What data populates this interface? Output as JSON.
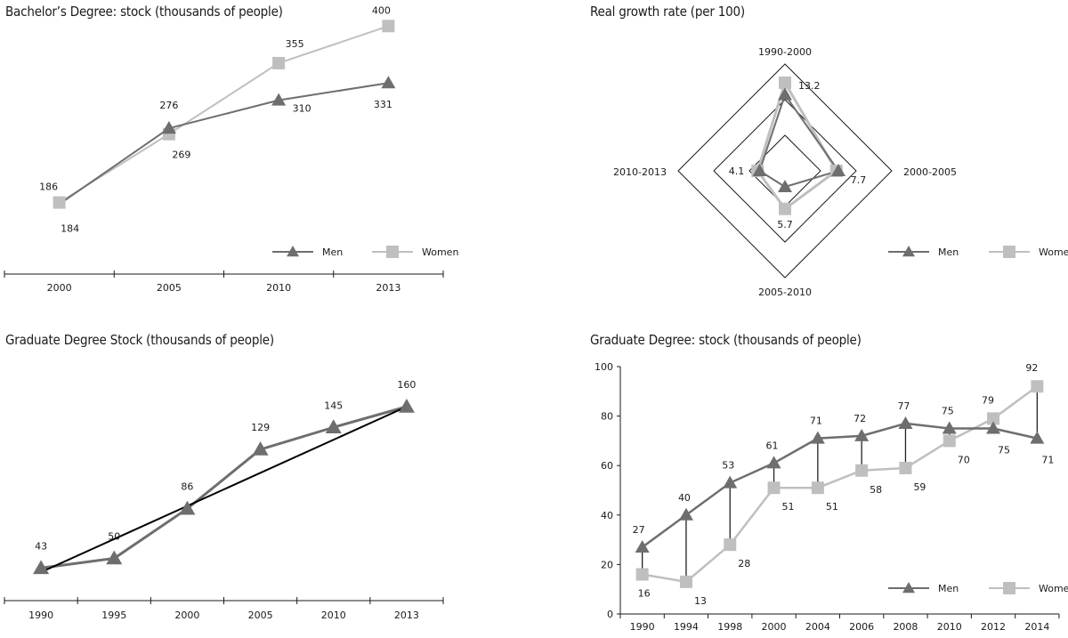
{
  "colors": {
    "men": "#6e6e6e",
    "women": "#bfbfbf",
    "axis": "#1a1a1a",
    "trend": "#000000"
  },
  "legend": {
    "men": "Men",
    "women": "Women"
  },
  "chart_data": [
    {
      "id": "bachelor",
      "type": "line",
      "title": "Bachelor’s Degree: stock (thousands of people)",
      "categories": [
        "2000",
        "2005",
        "2010",
        "2013"
      ],
      "series": [
        {
          "name": "Men",
          "values": [
            184,
            276,
            310,
            331
          ]
        },
        {
          "name": "Women",
          "values": [
            186,
            269,
            355,
            400
          ]
        }
      ],
      "ylim": [
        110,
        410
      ],
      "legend": "bottom-right"
    },
    {
      "id": "radar",
      "type": "radar",
      "title": "Real growth rate (per 100)",
      "axes": [
        "1990-2000",
        "2000-2005",
        "2005-2010",
        "2010-2013"
      ],
      "series": [
        {
          "name": "Men",
          "values": [
            11.4,
            8.0,
            2.4,
            3.8
          ]
        },
        {
          "name": "Women",
          "values": [
            13.2,
            7.7,
            5.7,
            4.1
          ]
        }
      ],
      "max": 16,
      "labels": [
        {
          "text": "13.2",
          "axis": 0,
          "value": 13.2
        },
        {
          "text": "7.7",
          "axis": 1,
          "value": 7.7
        },
        {
          "text": "5.7",
          "axis": 2,
          "value": 5.7
        },
        {
          "text": "4.1",
          "axis": 3,
          "value": 4.1
        }
      ],
      "legend": "bottom-right"
    },
    {
      "id": "graduate",
      "type": "line",
      "title": "Graduate Degree Stock (thousands of people)",
      "categories": [
        "1990",
        "1995",
        "2000",
        "2005",
        "2010",
        "2013"
      ],
      "series": [
        {
          "name": "",
          "values": [
            43,
            50,
            86,
            129,
            145,
            160
          ]
        }
      ],
      "trendline": [
        40,
        160
      ],
      "ylim": [
        0,
        165
      ]
    },
    {
      "id": "gradgender",
      "type": "line",
      "title": "Graduate Degree: stock (thousands of people)",
      "categories": [
        "1990",
        "1994",
        "1998",
        "2000",
        "2004",
        "2006",
        "2008",
        "2010",
        "2012",
        "2014"
      ],
      "series": [
        {
          "name": "Men",
          "values": [
            27,
            40,
            53,
            61,
            71,
            72,
            77,
            75,
            75,
            71
          ]
        },
        {
          "name": "Women",
          "values": [
            16,
            13,
            28,
            51,
            51,
            58,
            59,
            70,
            79,
            92
          ]
        }
      ],
      "ylim": [
        0,
        100
      ],
      "yticks": [
        0,
        20,
        40,
        60,
        80,
        100
      ],
      "legend": "bottom-right"
    }
  ]
}
